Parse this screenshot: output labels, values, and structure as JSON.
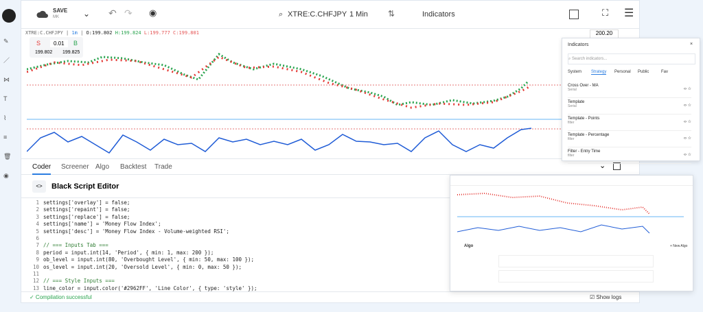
{
  "toolbar": {
    "save": "SAVE",
    "workspace": "MK",
    "symbol": "XTRE:C.CHFJPY",
    "interval": "1 Min",
    "indicators": "Indicators"
  },
  "chart": {
    "symbol": "XTRE:C.CHFJPY",
    "interval": "1m",
    "open": "O:199.802",
    "high": "H:199.824",
    "low": "L:199.777",
    "close": "C:199.801",
    "price_label": "200.20"
  },
  "order": {
    "sell": "S",
    "quantity": "0.01",
    "buy": "B",
    "sell_price": "199.802",
    "buy_price": "199.825"
  },
  "tabs": [
    "Coder",
    "Screener",
    "Algo",
    "Backtest",
    "Trade"
  ],
  "editor": {
    "title": "Black Script Editor",
    "lines": [
      {
        "number": "1",
        "text": "settings['overlay'] = false;"
      },
      {
        "number": "2",
        "text": "settings['repaint'] = false;"
      },
      {
        "number": "3",
        "text": "settings['replace'] = false;"
      },
      {
        "number": "4",
        "text": "settings['name'] = 'Money Flow Index';"
      },
      {
        "number": "5",
        "text": "settings['desc'] = 'Money Flow Index - Volume-weighted RSI';"
      },
      {
        "number": "6",
        "text": ""
      },
      {
        "number": "7",
        "text": "// === Inputs Tab ==="
      },
      {
        "number": "8",
        "text": "period = input.int(14, 'Period', { min: 1, max: 200 });"
      },
      {
        "number": "9",
        "text": "ob_level = input.int(80, 'Overbought Level', { min: 50, max: 100 });"
      },
      {
        "number": "10",
        "text": "os_level = input.int(20, 'Oversold Level', { min: 0, max: 50 });"
      },
      {
        "number": "11",
        "text": ""
      },
      {
        "number": "12",
        "text": "// === Style Inputs ==="
      },
      {
        "number": "13",
        "text": "line_color = input.color('#2962FF', 'Line Color', { type: 'style' });"
      }
    ],
    "status": "✓ Compilation successful",
    "show_logs": "Show logs"
  },
  "indicators": {
    "title": "Indicators",
    "search": "Search indicators...",
    "tabs": [
      "System",
      "Strategy",
      "Personal",
      "Public",
      "Fav"
    ],
    "items": [
      {
        "name": "Cross Over - MA",
        "kind": "Serial"
      },
      {
        "name": "Template",
        "kind": "Serial"
      },
      {
        "name": "Template - Points",
        "kind": "filter"
      },
      {
        "name": "Template - Percentage",
        "kind": "filter"
      },
      {
        "name": "Filter - Entry Time",
        "kind": "filter"
      }
    ]
  },
  "inset": {
    "title": "Algo",
    "new": "+ New Algo"
  }
}
